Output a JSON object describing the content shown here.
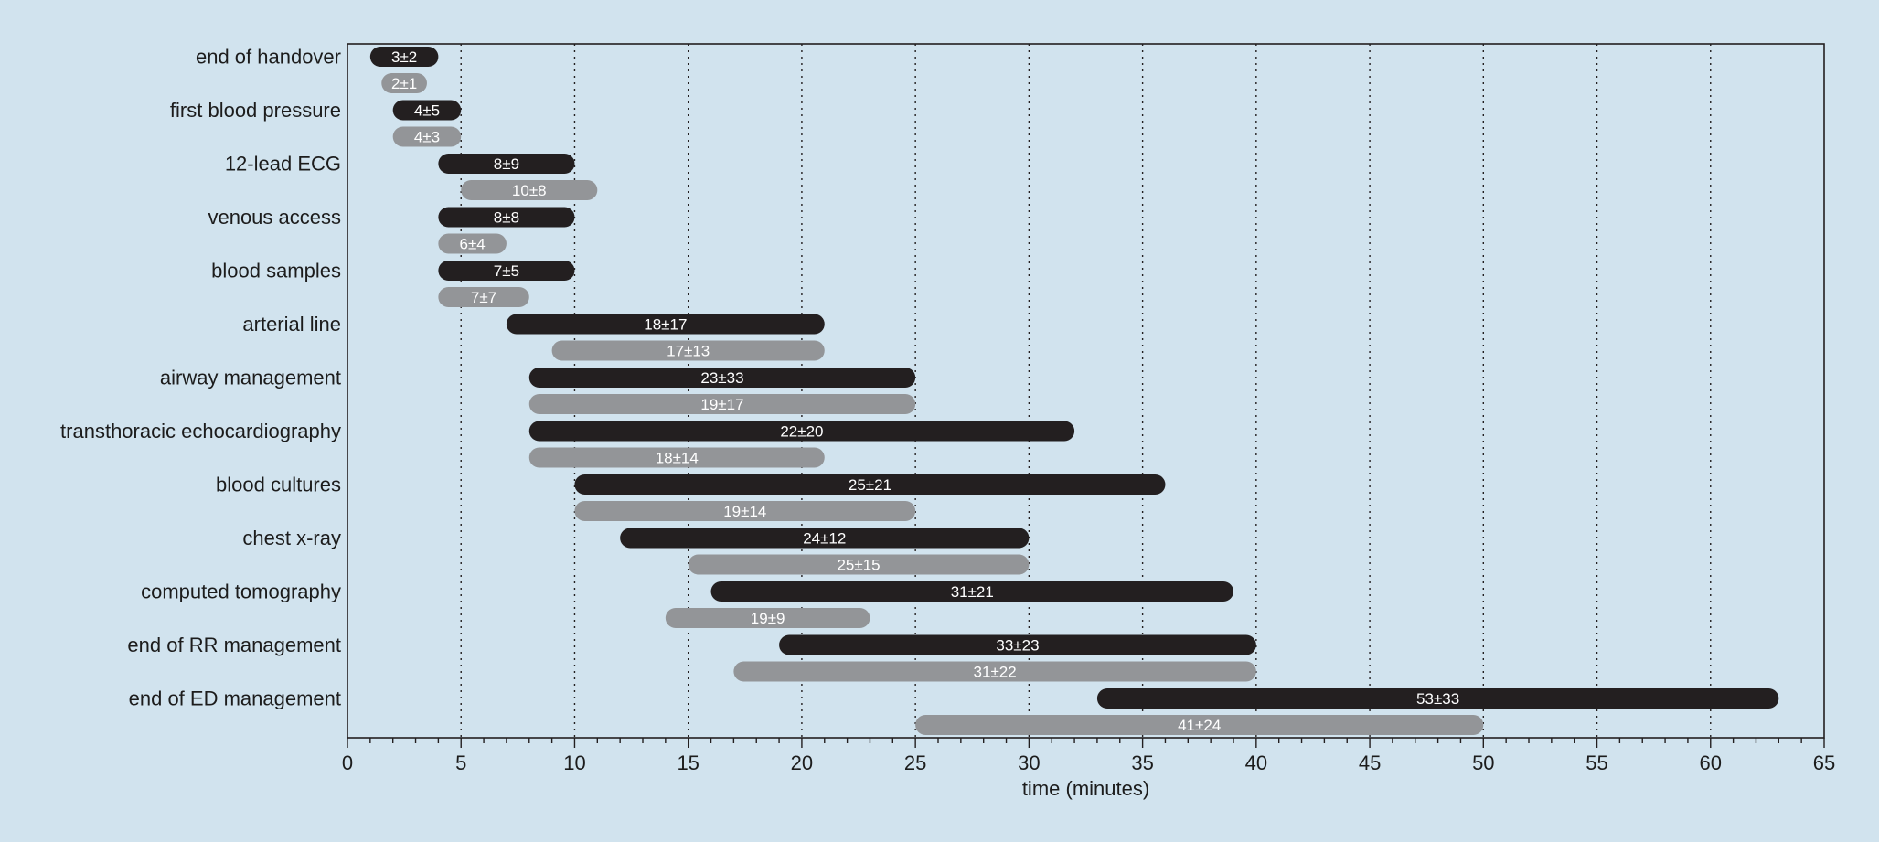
{
  "chart_data": {
    "type": "bar",
    "orientation": "horizontal-range",
    "xlabel": "time (minutes)",
    "xlim": [
      0,
      65
    ],
    "x_ticks": [
      0,
      5,
      10,
      15,
      20,
      25,
      30,
      35,
      40,
      45,
      50,
      55,
      60,
      65
    ],
    "x_tick_labels": [
      "0",
      "5",
      "10",
      "15",
      "20",
      "25",
      "30",
      "35",
      "40",
      "45",
      "50",
      "55",
      "60",
      "65"
    ],
    "grid": "vertical dotted at major ticks",
    "series_colors": [
      "#231f20",
      "#939598"
    ],
    "categories": [
      "end of handover",
      "first blood pressure",
      "12-lead ECG",
      "venous access",
      "blood samples",
      "arterial line",
      "airway management",
      "transthoracic echocardiography",
      "blood cultures",
      "chest x-ray",
      "computed tomography",
      "end of RR management",
      "end of ED management"
    ],
    "series": [
      {
        "color": "#231f20",
        "bars": [
          {
            "start": 1.0,
            "end": 4.0,
            "label": "3±2"
          },
          {
            "start": 2.0,
            "end": 5.0,
            "label": "4±5"
          },
          {
            "start": 4.0,
            "end": 10.0,
            "label": "8±9"
          },
          {
            "start": 4.0,
            "end": 10.0,
            "label": "8±8"
          },
          {
            "start": 4.0,
            "end": 10.0,
            "label": "7±5"
          },
          {
            "start": 7.0,
            "end": 21.0,
            "label": "18±17"
          },
          {
            "start": 8.0,
            "end": 25.0,
            "label": "23±33"
          },
          {
            "start": 8.0,
            "end": 32.0,
            "label": "22±20"
          },
          {
            "start": 10.0,
            "end": 36.0,
            "label": "25±21"
          },
          {
            "start": 12.0,
            "end": 30.0,
            "label": "24±12"
          },
          {
            "start": 16.0,
            "end": 39.0,
            "label": "31±21"
          },
          {
            "start": 19.0,
            "end": 40.0,
            "label": "33±23"
          },
          {
            "start": 33.0,
            "end": 63.0,
            "label": "53±33"
          }
        ]
      },
      {
        "color": "#939598",
        "bars": [
          {
            "start": 1.5,
            "end": 3.5,
            "label": "2±1"
          },
          {
            "start": 2.0,
            "end": 5.0,
            "label": "4±3"
          },
          {
            "start": 5.0,
            "end": 11.0,
            "label": "10±8"
          },
          {
            "start": 4.0,
            "end": 7.0,
            "label": "6±4"
          },
          {
            "start": 4.0,
            "end": 8.0,
            "label": "7±7"
          },
          {
            "start": 9.0,
            "end": 21.0,
            "label": "17±13"
          },
          {
            "start": 8.0,
            "end": 25.0,
            "label": "19±17"
          },
          {
            "start": 8.0,
            "end": 21.0,
            "label": "18±14"
          },
          {
            "start": 10.0,
            "end": 25.0,
            "label": "19±14"
          },
          {
            "start": 15.0,
            "end": 30.0,
            "label": "25±15"
          },
          {
            "start": 14.0,
            "end": 23.0,
            "label": "19±9"
          },
          {
            "start": 17.0,
            "end": 40.0,
            "label": "31±22"
          },
          {
            "start": 25.0,
            "end": 50.0,
            "label": "41±24"
          }
        ]
      }
    ]
  }
}
